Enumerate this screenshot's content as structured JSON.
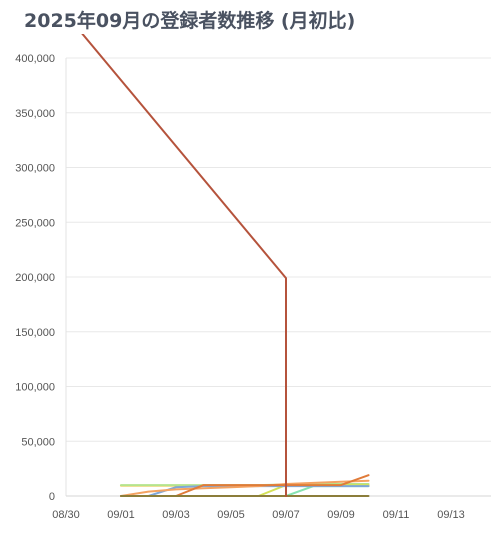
{
  "chart_data": {
    "type": "line",
    "title": "2025年09月の登録者数推移 (月初比)",
    "xlabel": "",
    "ylabel": "",
    "ylim": [
      0,
      400000
    ],
    "xlim": [
      "2025-08-30",
      "2025-09-14"
    ],
    "y_ticks": [
      0,
      50000,
      100000,
      150000,
      200000,
      250000,
      300000,
      350000,
      400000
    ],
    "y_tick_labels": [
      "0",
      "50,000",
      "100,000",
      "150,000",
      "200,000",
      "250,000",
      "300,000",
      "350,000",
      "400,000"
    ],
    "x_ticks": [
      "2025-08-30",
      "2025-09-01",
      "2025-09-03",
      "2025-09-05",
      "2025-09-07",
      "2025-09-09",
      "2025-09-11",
      "2025-09-13"
    ],
    "x_tick_labels": [
      "08/30",
      "09/01",
      "09/03",
      "09/05",
      "09/07",
      "09/09",
      "09/11",
      "09/13"
    ],
    "grid": true,
    "legend": "none",
    "series": [
      {
        "color": "#f2c94c",
        "x": [
          "2025-09-01",
          "2025-09-02",
          "2025-09-03",
          "2025-09-04",
          "2025-09-05",
          "2025-09-06",
          "2025-09-07",
          "2025-09-08",
          "2025-09-09",
          "2025-09-10"
        ],
        "values": [
          9500,
          9500,
          9500,
          9500,
          9500,
          9500,
          9500,
          9500,
          9500,
          9500
        ]
      },
      {
        "color": "#b5e48c",
        "x": [
          "2025-09-01",
          "2025-09-02",
          "2025-09-03",
          "2025-09-04",
          "2025-09-05",
          "2025-09-06",
          "2025-09-07",
          "2025-09-08",
          "2025-09-09",
          "2025-09-10"
        ],
        "values": [
          10000,
          10000,
          10000,
          10000,
          10000,
          10000,
          10500,
          11000,
          11000,
          11000
        ]
      },
      {
        "color": "#86e3b0",
        "x": [
          "2025-09-01",
          "2025-09-02",
          "2025-09-03",
          "2025-09-04",
          "2025-09-05",
          "2025-09-06",
          "2025-09-07",
          "2025-09-08",
          "2025-09-09",
          "2025-09-10"
        ],
        "values": [
          0,
          0,
          0,
          0,
          0,
          0,
          0,
          9000,
          9000,
          9000
        ]
      },
      {
        "color": "#d4e157",
        "x": [
          "2025-09-01",
          "2025-09-02",
          "2025-09-03",
          "2025-09-04",
          "2025-09-05",
          "2025-09-06",
          "2025-09-07",
          "2025-09-08",
          "2025-09-09",
          "2025-09-10"
        ],
        "values": [
          0,
          0,
          0,
          0,
          0,
          0,
          10000,
          10000,
          10000,
          10000
        ]
      },
      {
        "color": "#7fa7d9",
        "x": [
          "2025-09-01",
          "2025-09-02",
          "2025-09-03",
          "2025-09-04",
          "2025-09-05",
          "2025-09-06",
          "2025-09-07",
          "2025-09-08",
          "2025-09-09",
          "2025-09-10"
        ],
        "values": [
          0,
          0,
          8000,
          9000,
          9000,
          9000,
          9000,
          9000,
          9000,
          9000
        ]
      },
      {
        "color": "#f4a261",
        "x": [
          "2025-09-01",
          "2025-09-02",
          "2025-09-03",
          "2025-09-04",
          "2025-09-05",
          "2025-09-06",
          "2025-09-07",
          "2025-09-08",
          "2025-09-09",
          "2025-09-10"
        ],
        "values": [
          0,
          4000,
          6000,
          7000,
          8000,
          9000,
          11000,
          12000,
          13000,
          14000
        ]
      },
      {
        "color": "#e07b39",
        "x": [
          "2025-09-01",
          "2025-09-02",
          "2025-09-03",
          "2025-09-04",
          "2025-09-05",
          "2025-09-06",
          "2025-09-07",
          "2025-09-08",
          "2025-09-09",
          "2025-09-10"
        ],
        "values": [
          0,
          0,
          0,
          10000,
          10000,
          10000,
          10000,
          10000,
          10000,
          19000
        ]
      },
      {
        "color": "#8b7d3a",
        "x": [
          "2025-09-01",
          "2025-09-02",
          "2025-09-03",
          "2025-09-04",
          "2025-09-05",
          "2025-09-06",
          "2025-09-07",
          "2025-09-08",
          "2025-09-09",
          "2025-09-10"
        ],
        "values": [
          0,
          0,
          0,
          0,
          0,
          0,
          0,
          0,
          0,
          0
        ]
      },
      {
        "color": "#b5533c",
        "x": [
          "2025-08-30",
          "2025-09-07",
          "2025-09-07",
          "2025-09-07"
        ],
        "values": [
          440000,
          199000,
          18000,
          0
        ]
      }
    ]
  }
}
